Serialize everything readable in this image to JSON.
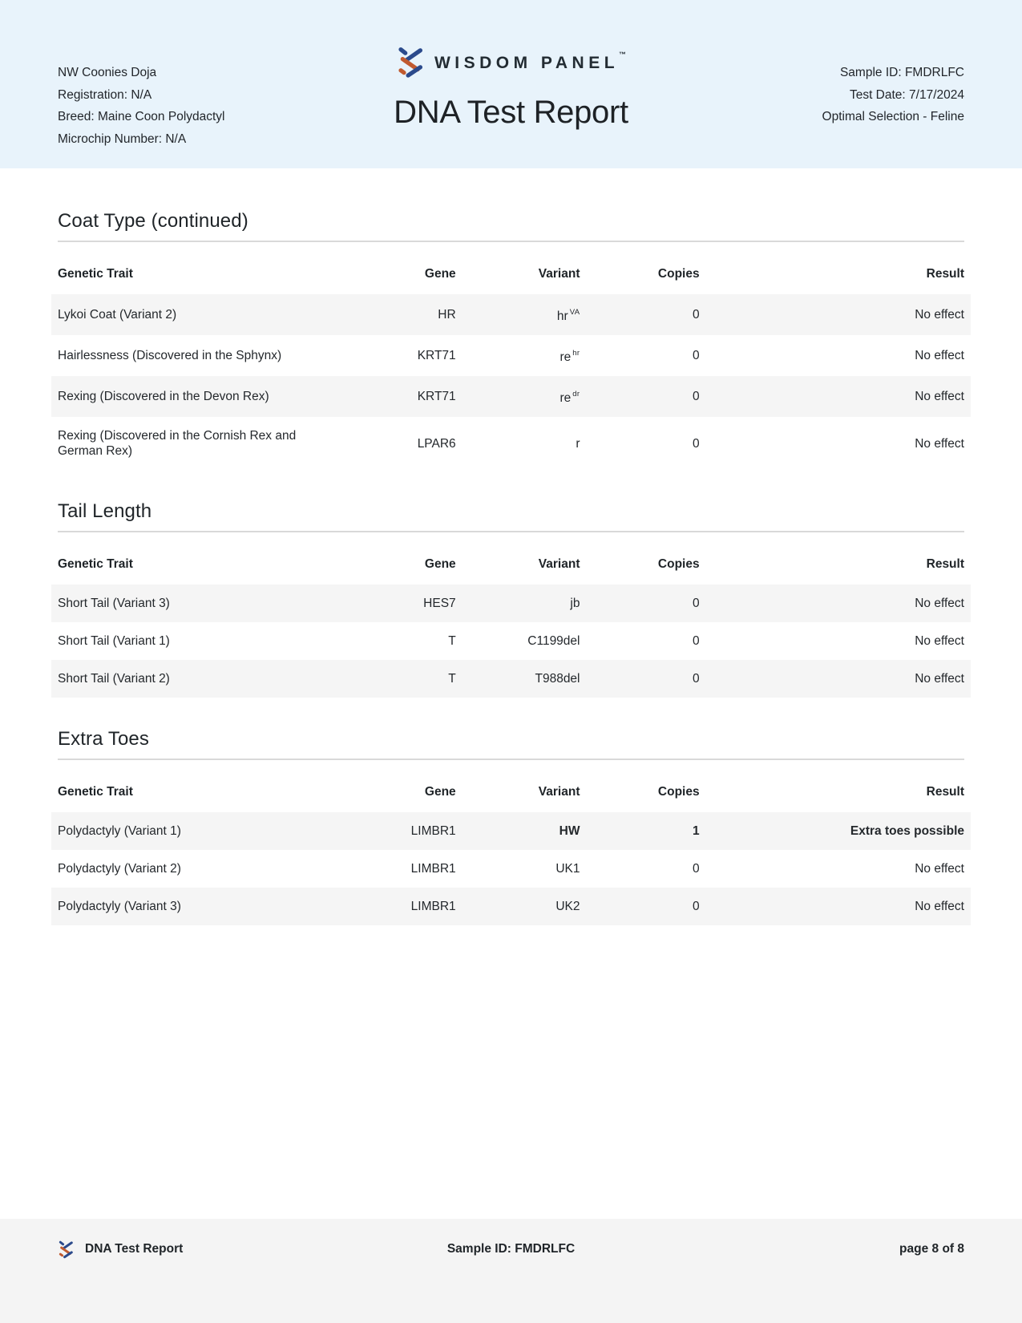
{
  "header": {
    "pet": {
      "name": "NW Coonies Doja",
      "registration": "Registration: N/A",
      "breed": "Breed: Maine Coon Polydactyl",
      "microchip": "Microchip Number: N/A"
    },
    "brand": "WISDOM PANEL",
    "brand_tm": "™",
    "title": "DNA Test Report",
    "sample": {
      "sample_id": "Sample ID: FMDRLFC",
      "test_date": "Test Date: 7/17/2024",
      "product": "Optimal Selection - Feline"
    }
  },
  "table": {
    "columns": [
      "Genetic Trait",
      "Gene",
      "Variant",
      "Copies",
      "Result"
    ]
  },
  "sections": [
    {
      "title": "Coat Type (continued)",
      "rows": [
        {
          "trait": "Lykoi Coat (Variant 2)",
          "gene": "HR",
          "variant": "hr",
          "variant_sup": "VA",
          "copies": "0",
          "result": "No effect",
          "bold": false
        },
        {
          "trait": "Hairlessness (Discovered in the Sphynx)",
          "gene": "KRT71",
          "variant": "re",
          "variant_sup": "hr",
          "copies": "0",
          "result": "No effect",
          "bold": false
        },
        {
          "trait": "Rexing (Discovered in the Devon Rex)",
          "gene": "KRT71",
          "variant": "re",
          "variant_sup": "dr",
          "copies": "0",
          "result": "No effect",
          "bold": false
        },
        {
          "trait": "Rexing (Discovered in the Cornish Rex and German Rex)",
          "gene": "LPAR6",
          "variant": "r",
          "variant_sup": "",
          "copies": "0",
          "result": "No effect",
          "bold": false
        }
      ]
    },
    {
      "title": "Tail Length",
      "rows": [
        {
          "trait": "Short Tail (Variant 3)",
          "gene": "HES7",
          "variant": "jb",
          "variant_sup": "",
          "copies": "0",
          "result": "No effect",
          "bold": false
        },
        {
          "trait": "Short Tail (Variant 1)",
          "gene": "T",
          "variant": "C1199del",
          "variant_sup": "",
          "copies": "0",
          "result": "No effect",
          "bold": false
        },
        {
          "trait": "Short Tail (Variant 2)",
          "gene": "T",
          "variant": "T988del",
          "variant_sup": "",
          "copies": "0",
          "result": "No effect",
          "bold": false
        }
      ]
    },
    {
      "title": "Extra Toes",
      "rows": [
        {
          "trait": "Polydactyly (Variant 1)",
          "gene": "LIMBR1",
          "variant": "HW",
          "variant_sup": "",
          "copies": "1",
          "result": "Extra toes possible",
          "bold": true
        },
        {
          "trait": "Polydactyly (Variant 2)",
          "gene": "LIMBR1",
          "variant": "UK1",
          "variant_sup": "",
          "copies": "0",
          "result": "No effect",
          "bold": false
        },
        {
          "trait": "Polydactyly (Variant 3)",
          "gene": "LIMBR1",
          "variant": "UK2",
          "variant_sup": "",
          "copies": "0",
          "result": "No effect",
          "bold": false
        }
      ]
    }
  ],
  "footer": {
    "label": "DNA Test Report",
    "sample_id": "Sample ID: FMDRLFC",
    "page": "page 8 of 8"
  },
  "colors": {
    "header_bg": "#e8f3fb",
    "row_stripe": "#f5f5f5",
    "footer_bg": "#f4f4f4",
    "brand_blue": "#2b4a8c",
    "brand_orange": "#c05a2f",
    "divider": "#d9d9d9",
    "text": "#23272b"
  }
}
